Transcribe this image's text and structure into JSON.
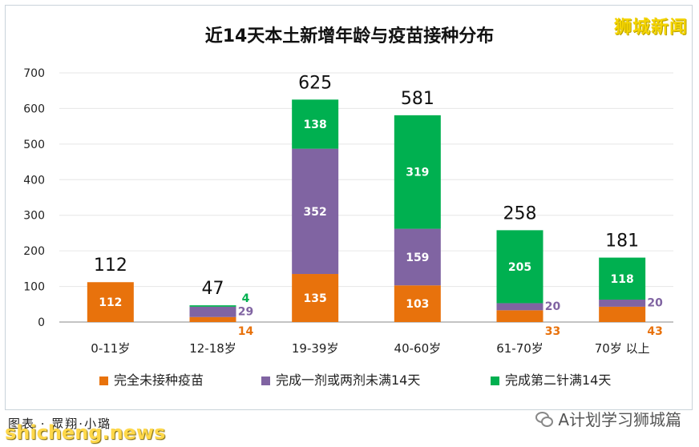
{
  "brand": "狮城新闻",
  "credit": "图表 · 眾翔·小璐",
  "watermark_left": "shicheng.news",
  "watermark_right": "A计划学习狮城篇",
  "colors": {
    "unvaccinated": "#e8720c",
    "partial": "#8064a2",
    "full": "#00b050",
    "axis": "#b0b0b0",
    "grid": "#e6e6e6"
  },
  "chart_data": {
    "type": "bar",
    "stacked": true,
    "title": "近14天本土新增年龄与疫苗接种分布",
    "categories": [
      "0-11岁",
      "12-18岁",
      "19-39岁",
      "40-60岁",
      "61-70岁",
      "70岁 以上"
    ],
    "series": [
      {
        "name": "完全未接种疫苗",
        "values": [
          112,
          14,
          135,
          103,
          33,
          43
        ],
        "color": "#e8720c"
      },
      {
        "name": "完成一剂或两剂未满14天",
        "values": [
          0,
          29,
          352,
          159,
          20,
          20
        ],
        "color": "#8064a2"
      },
      {
        "name": "完成第二针满14天",
        "values": [
          0,
          4,
          138,
          319,
          205,
          118
        ],
        "color": "#00b050"
      }
    ],
    "totals": [
      112,
      47,
      625,
      581,
      258,
      181
    ],
    "yticks": [
      0,
      100,
      200,
      300,
      400,
      500,
      600,
      700
    ],
    "ylim": [
      0,
      700
    ],
    "grid": true,
    "legend": "bottom"
  }
}
